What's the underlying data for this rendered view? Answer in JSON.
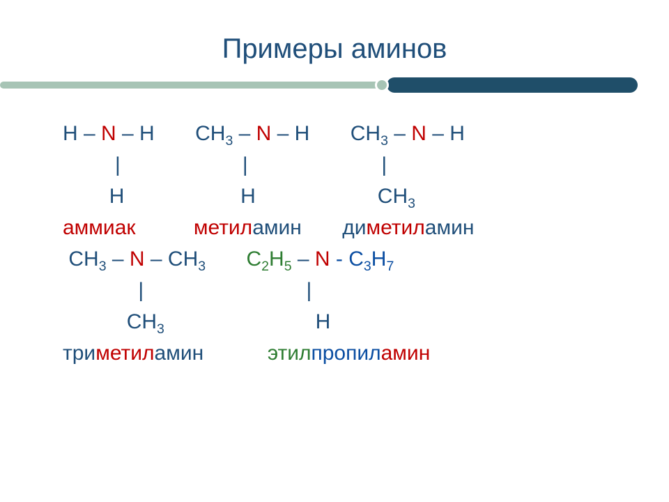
{
  "colors": {
    "title": "#1f4e79",
    "body": "#1f4e79",
    "red": "#c00000",
    "green": "#2e7d32",
    "blue": "#0b4ea2",
    "accent_light": "#a7c4b5",
    "accent_dark": "#1f4e69",
    "dot": "#a7c4b5",
    "background": "#ffffff"
  },
  "typography": {
    "title_fontsize": 40,
    "body_fontsize": 30,
    "font_family": "Arial"
  },
  "title": "Примеры   аминов",
  "formulas": {
    "row1": {
      "a_left": "H – ",
      "a_mid": "N",
      "a_right": " – H",
      "b_left": "CH",
      "b_sub": "3",
      "b_mid": " – ",
      "b_n": "N",
      "b_right": " – H",
      "c_left": "CH",
      "c_sub": "3",
      "c_mid": " – ",
      "c_n": "N",
      "c_right": " – H"
    },
    "row2": {
      "bar": "|"
    },
    "row3": {
      "a": "H",
      "b": "H",
      "c_left": "CH",
      "c_sub": "3"
    },
    "names1": {
      "n1": "аммиак",
      "n2_pre": "метил",
      "n2_suf": "амин",
      "n3_pre": "ди",
      "n3_mid": "метил",
      "n3_suf": "амин"
    },
    "row4": {
      "a_l": "CH",
      "a_ls": "3",
      "a_m": " – ",
      "a_n": "N",
      "a_r": " – CH",
      "a_rs": "3",
      "b_l": "C",
      "b_ls1": "2",
      "b_m1": "H",
      "b_ls2": "5",
      "b_m2": " – ",
      "b_n": "N",
      "b_m3": " - C",
      "b_rs1": "3",
      "b_r": "H",
      "b_rs2": "7"
    },
    "row5": {
      "bar": "|"
    },
    "row6": {
      "a_l": "CH",
      "a_s": "3",
      "b": "H"
    },
    "names2": {
      "n1_pre": "три",
      "n1_mid": "метил",
      "n1_suf": "амин",
      "n2_a": "этил",
      "n2_b": "пропил",
      "n2_c": "амин"
    }
  }
}
